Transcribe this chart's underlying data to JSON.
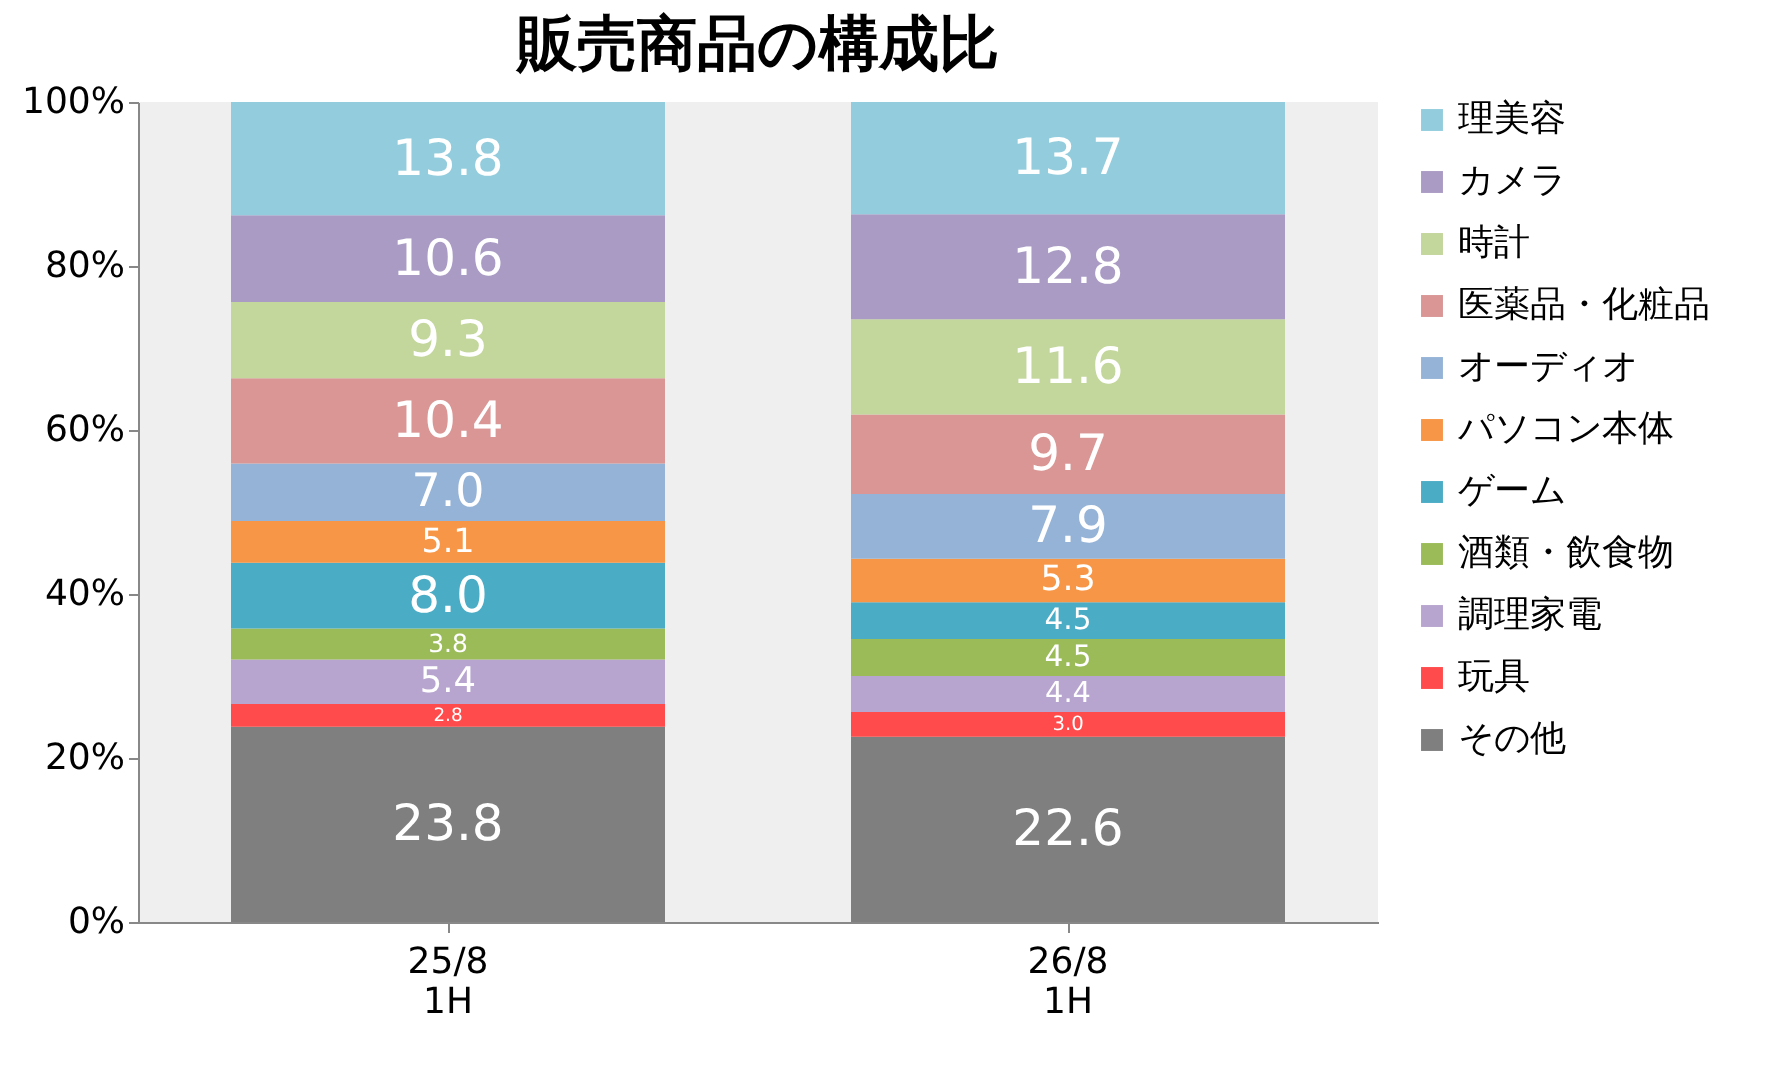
{
  "chart_data": {
    "type": "bar",
    "title": "販売商品の構成比",
    "stacked": true,
    "categories": [
      "25/8\n1H",
      "26/8\n1H"
    ],
    "ylim": [
      0,
      100
    ],
    "yticks": [
      {
        "value": 0,
        "label": "0%"
      },
      {
        "value": 20,
        "label": "20%"
      },
      {
        "value": 40,
        "label": "40%"
      },
      {
        "value": 60,
        "label": "60%"
      },
      {
        "value": 80,
        "label": "80%"
      },
      {
        "value": 100,
        "label": "100%"
      }
    ],
    "grid": false,
    "legend": "right",
    "series": [
      {
        "name": "その他",
        "color": "#7f7f7f",
        "values": [
          23.8,
          22.6
        ],
        "value_labels": [
          "23.8",
          "22.6"
        ]
      },
      {
        "name": "玩具",
        "color": "#ff4b4b",
        "values": [
          2.8,
          3.0
        ],
        "value_labels": [
          "2.8",
          "3.0"
        ]
      },
      {
        "name": "調理家電",
        "color": "#b7a4cf",
        "values": [
          5.4,
          4.4
        ],
        "value_labels": [
          "5.4",
          "4.4"
        ]
      },
      {
        "name": "酒類・飲食物",
        "color": "#9bbb59",
        "values": [
          3.8,
          4.5
        ],
        "value_labels": [
          "3.8",
          "4.5"
        ]
      },
      {
        "name": "ゲーム",
        "color": "#4bacc6",
        "values": [
          8.0,
          4.5
        ],
        "value_labels": [
          "8.0",
          "4.5"
        ]
      },
      {
        "name": "パソコン本体",
        "color": "#f79646",
        "values": [
          5.1,
          5.3
        ],
        "value_labels": [
          "5.1",
          "5.3"
        ]
      },
      {
        "name": "オーディオ",
        "color": "#95b3d7",
        "values": [
          7.0,
          7.9
        ],
        "value_labels": [
          "7.0",
          "7.9"
        ]
      },
      {
        "name": "医薬品・化粧品",
        "color": "#d99694",
        "values": [
          10.4,
          9.7
        ],
        "value_labels": [
          "10.4",
          "9.7"
        ]
      },
      {
        "name": "時計",
        "color": "#c3d69b",
        "values": [
          9.3,
          11.6
        ],
        "value_labels": [
          "9.3",
          "11.6"
        ]
      },
      {
        "name": "カメラ",
        "color": "#a99bc4",
        "values": [
          10.6,
          12.8
        ],
        "value_labels": [
          "10.6",
          "12.8"
        ]
      },
      {
        "name": "理美容",
        "color": "#93cddd",
        "values": [
          13.8,
          13.7
        ],
        "value_labels": [
          "13.8",
          "13.7"
        ]
      }
    ]
  }
}
